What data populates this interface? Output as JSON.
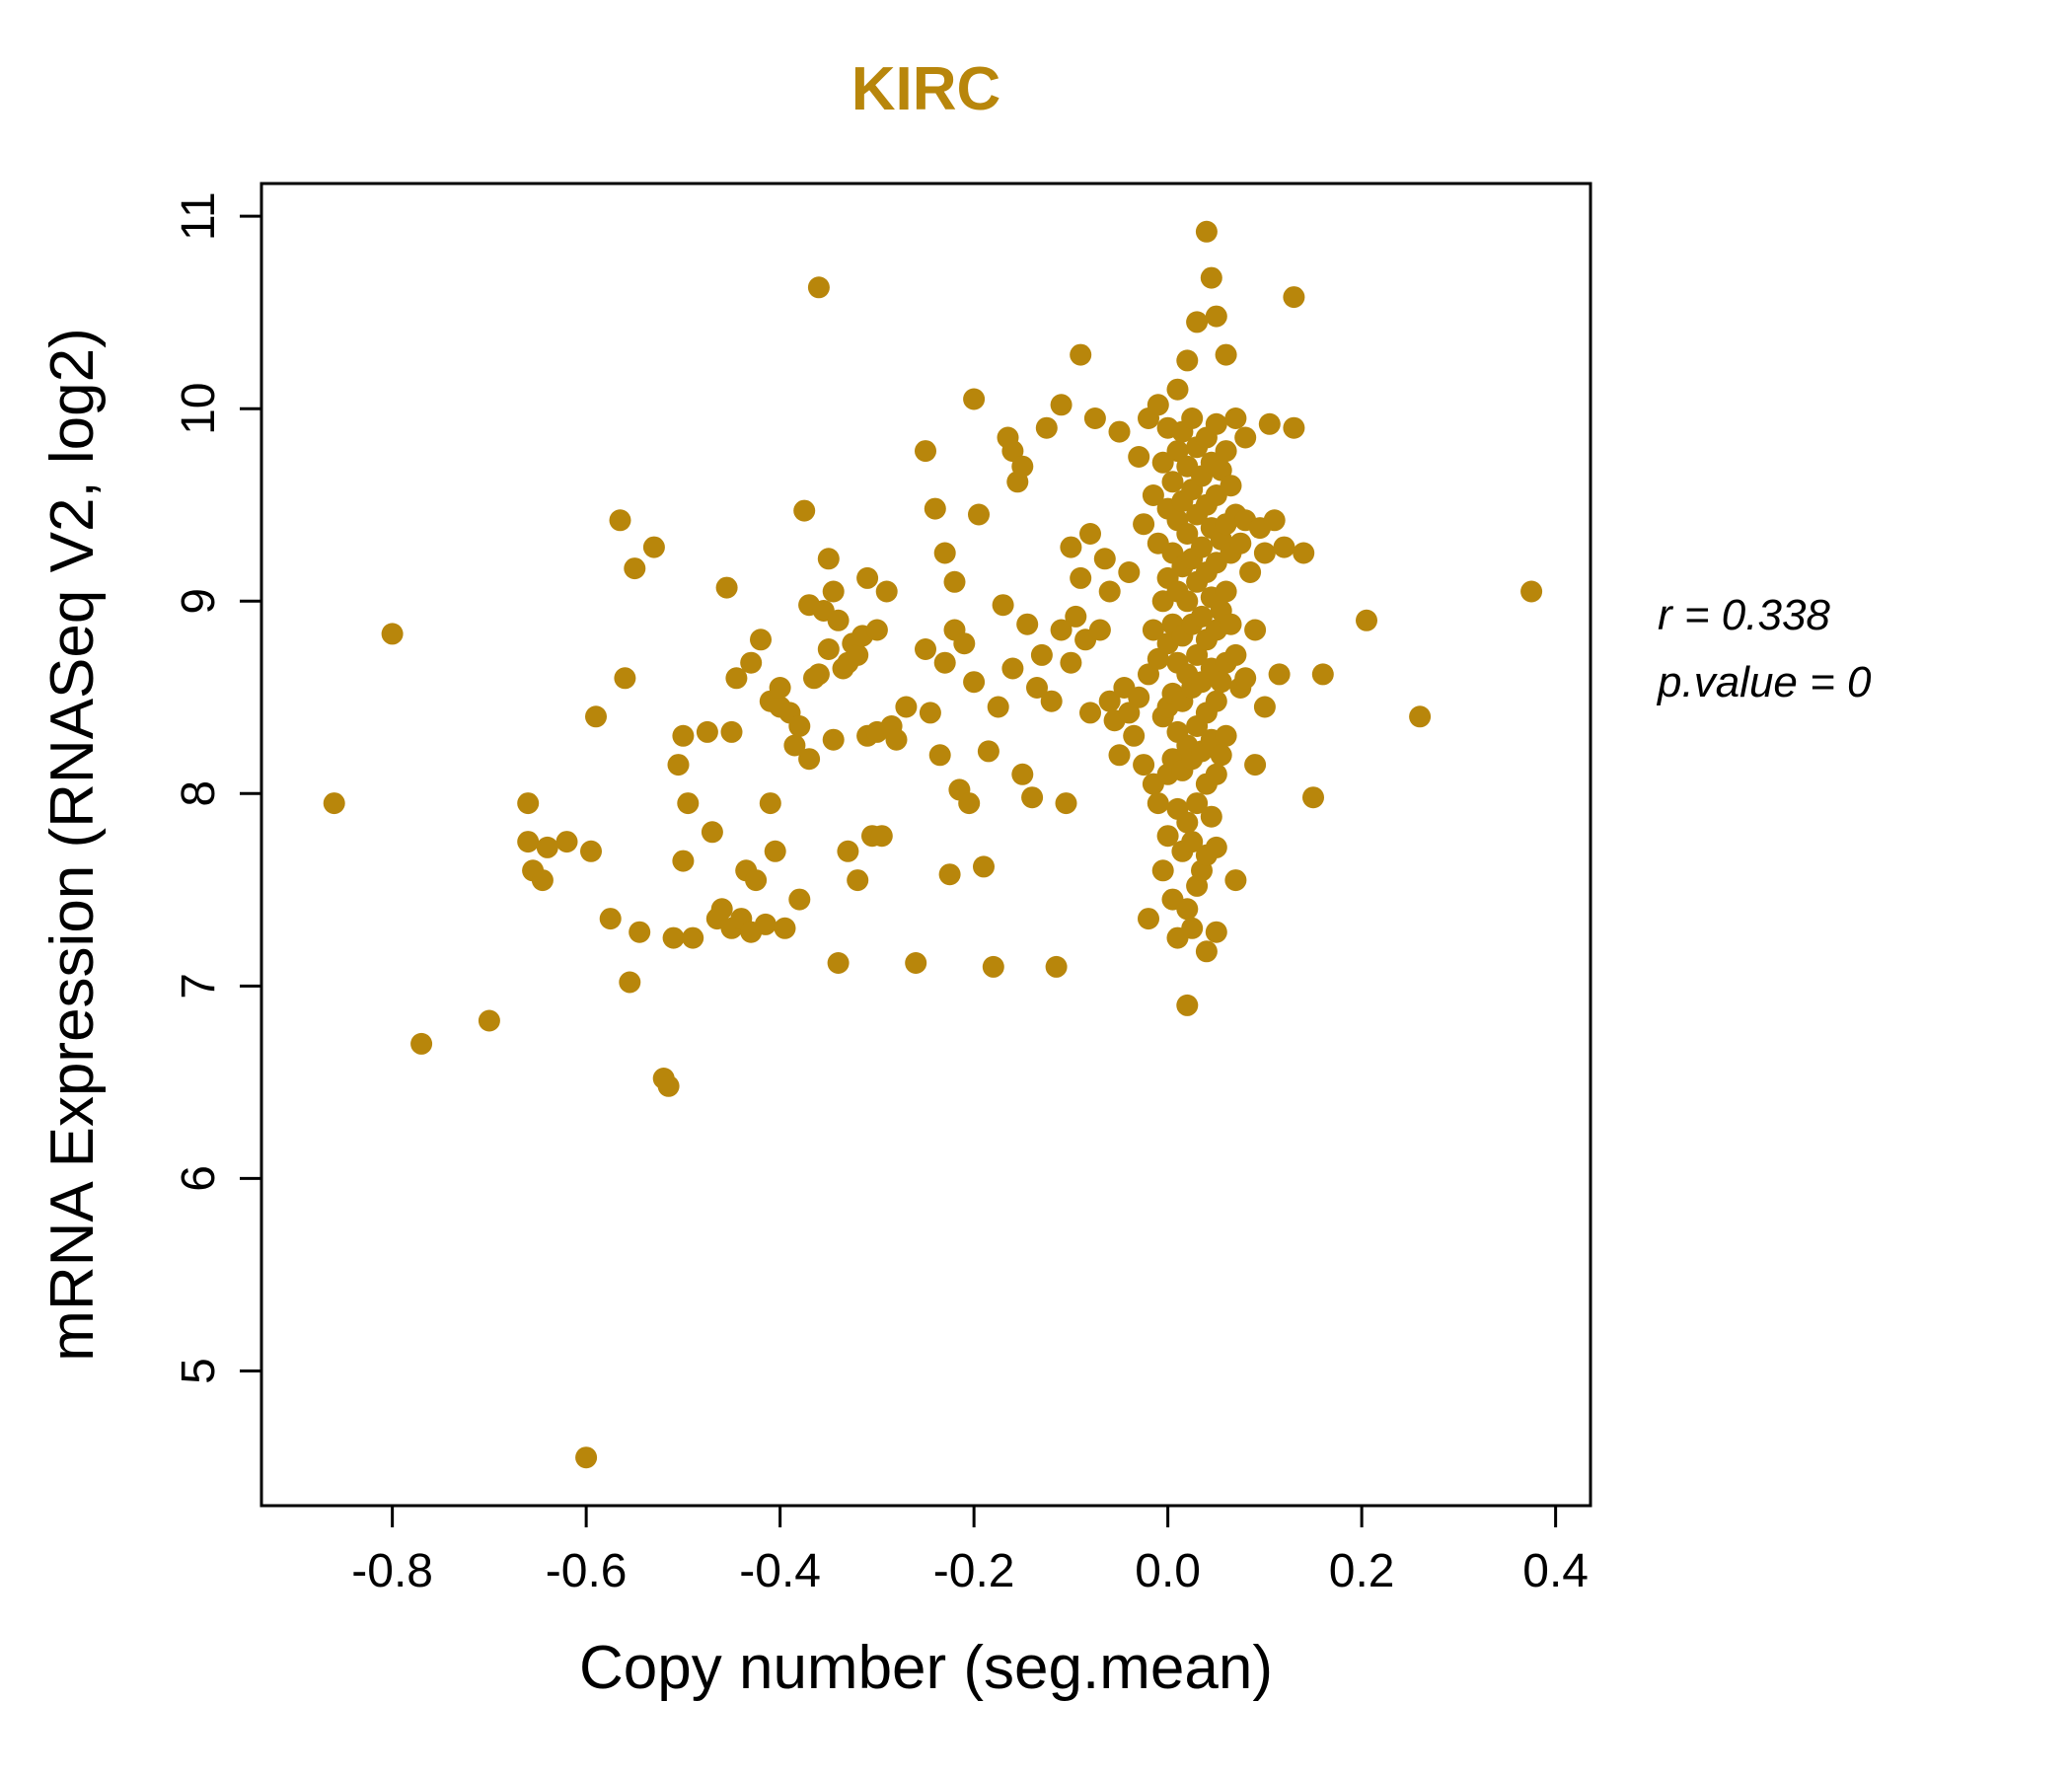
{
  "header": {
    "title": "KIRC"
  },
  "annotation": {
    "line1": "r = 0.338",
    "line2": "p.value = 0"
  },
  "colors": {
    "accent": "#B8860B",
    "axis": "#000000"
  },
  "chart_data": {
    "type": "scatter",
    "title": "KIRC",
    "xlabel": "Copy number (seg.mean)",
    "ylabel": "mRNA Expression (RNASeq V2, log2)",
    "xlim": [
      -0.935,
      0.436
    ],
    "ylim": [
      4.3,
      11.17
    ],
    "xticks": [
      -0.8,
      -0.6,
      -0.4,
      -0.2,
      0.0,
      0.2,
      0.4
    ],
    "xtick_labels": [
      "-0.8",
      "-0.6",
      "-0.4",
      "-0.2",
      "0.0",
      "0.2",
      "0.4"
    ],
    "yticks": [
      5,
      6,
      7,
      8,
      9,
      10,
      11
    ],
    "ytick_labels": [
      "5",
      "6",
      "7",
      "8",
      "9",
      "10",
      "11"
    ],
    "legend": null,
    "grid": false,
    "point_color": "#B8860B",
    "point_radius": 11,
    "r": 0.338,
    "p_value": 0,
    "points": [
      [
        -0.86,
        7.95
      ],
      [
        -0.8,
        8.83
      ],
      [
        -0.77,
        6.7
      ],
      [
        -0.7,
        6.82
      ],
      [
        -0.66,
        7.95
      ],
      [
        -0.66,
        7.75
      ],
      [
        -0.655,
        7.6
      ],
      [
        -0.645,
        7.55
      ],
      [
        -0.64,
        7.72
      ],
      [
        -0.62,
        7.75
      ],
      [
        -0.6,
        4.55
      ],
      [
        -0.595,
        7.7
      ],
      [
        -0.59,
        8.4
      ],
      [
        -0.575,
        7.35
      ],
      [
        -0.565,
        9.42
      ],
      [
        -0.56,
        8.6
      ],
      [
        -0.555,
        7.02
      ],
      [
        -0.55,
        9.17
      ],
      [
        -0.545,
        7.28
      ],
      [
        -0.53,
        9.28
      ],
      [
        -0.52,
        6.52
      ],
      [
        -0.515,
        6.48
      ],
      [
        -0.51,
        7.25
      ],
      [
        -0.505,
        8.15
      ],
      [
        -0.5,
        8.3
      ],
      [
        -0.5,
        7.65
      ],
      [
        -0.495,
        7.95
      ],
      [
        -0.49,
        7.25
      ],
      [
        -0.475,
        8.32
      ],
      [
        -0.47,
        7.8
      ],
      [
        -0.465,
        7.35
      ],
      [
        -0.46,
        7.4
      ],
      [
        -0.455,
        9.07
      ],
      [
        -0.45,
        7.3
      ],
      [
        -0.45,
        8.32
      ],
      [
        -0.445,
        8.6
      ],
      [
        -0.44,
        7.35
      ],
      [
        -0.435,
        7.6
      ],
      [
        -0.43,
        7.28
      ],
      [
        -0.43,
        8.68
      ],
      [
        -0.425,
        7.55
      ],
      [
        -0.42,
        8.8
      ],
      [
        -0.415,
        7.32
      ],
      [
        -0.41,
        7.95
      ],
      [
        -0.41,
        8.48
      ],
      [
        -0.405,
        7.7
      ],
      [
        -0.4,
        8.45
      ],
      [
        -0.4,
        8.55
      ],
      [
        -0.395,
        7.3
      ],
      [
        -0.39,
        8.42
      ],
      [
        -0.385,
        8.25
      ],
      [
        -0.38,
        7.45
      ],
      [
        -0.38,
        8.35
      ],
      [
        -0.375,
        9.47
      ],
      [
        -0.37,
        8.18
      ],
      [
        -0.37,
        8.98
      ],
      [
        -0.365,
        8.6
      ],
      [
        -0.36,
        10.63
      ],
      [
        -0.36,
        8.62
      ],
      [
        -0.355,
        8.95
      ],
      [
        -0.35,
        9.22
      ],
      [
        -0.35,
        8.75
      ],
      [
        -0.345,
        9.05
      ],
      [
        -0.345,
        8.28
      ],
      [
        -0.34,
        8.9
      ],
      [
        -0.34,
        7.12
      ],
      [
        -0.335,
        8.65
      ],
      [
        -0.33,
        8.68
      ],
      [
        -0.33,
        7.7
      ],
      [
        -0.325,
        8.78
      ],
      [
        -0.32,
        8.72
      ],
      [
        -0.32,
        7.55
      ],
      [
        -0.315,
        8.82
      ],
      [
        -0.31,
        9.12
      ],
      [
        -0.31,
        8.3
      ],
      [
        -0.305,
        7.78
      ],
      [
        -0.3,
        8.85
      ],
      [
        -0.3,
        8.32
      ],
      [
        -0.295,
        7.78
      ],
      [
        -0.29,
        9.05
      ],
      [
        -0.285,
        8.35
      ],
      [
        -0.28,
        8.28
      ],
      [
        -0.27,
        8.45
      ],
      [
        -0.26,
        7.12
      ],
      [
        -0.25,
        8.75
      ],
      [
        -0.25,
        9.78
      ],
      [
        -0.245,
        8.42
      ],
      [
        -0.24,
        9.48
      ],
      [
        -0.235,
        8.2
      ],
      [
        -0.23,
        9.25
      ],
      [
        -0.23,
        8.68
      ],
      [
        -0.225,
        7.58
      ],
      [
        -0.22,
        8.85
      ],
      [
        -0.22,
        9.1
      ],
      [
        -0.215,
        8.02
      ],
      [
        -0.21,
        8.78
      ],
      [
        -0.205,
        7.95
      ],
      [
        -0.2,
        10.05
      ],
      [
        -0.2,
        8.58
      ],
      [
        -0.195,
        9.45
      ],
      [
        -0.19,
        7.62
      ],
      [
        -0.185,
        8.22
      ],
      [
        -0.18,
        7.1
      ],
      [
        -0.175,
        8.45
      ],
      [
        -0.17,
        8.98
      ],
      [
        -0.165,
        9.85
      ],
      [
        -0.16,
        9.78
      ],
      [
        -0.16,
        8.65
      ],
      [
        -0.155,
        9.62
      ],
      [
        -0.15,
        9.7
      ],
      [
        -0.15,
        8.1
      ],
      [
        -0.145,
        8.88
      ],
      [
        -0.14,
        7.98
      ],
      [
        -0.135,
        8.55
      ],
      [
        -0.13,
        8.72
      ],
      [
        -0.125,
        9.9
      ],
      [
        -0.12,
        8.48
      ],
      [
        -0.115,
        7.1
      ],
      [
        -0.11,
        10.02
      ],
      [
        -0.11,
        8.85
      ],
      [
        -0.105,
        7.95
      ],
      [
        -0.1,
        9.28
      ],
      [
        -0.1,
        8.68
      ],
      [
        -0.095,
        8.92
      ],
      [
        -0.09,
        10.28
      ],
      [
        -0.09,
        9.12
      ],
      [
        -0.085,
        8.8
      ],
      [
        -0.08,
        9.35
      ],
      [
        -0.08,
        8.42
      ],
      [
        -0.075,
        9.95
      ],
      [
        -0.07,
        8.85
      ],
      [
        -0.065,
        9.22
      ],
      [
        -0.06,
        8.48
      ],
      [
        -0.06,
        9.05
      ],
      [
        -0.055,
        8.38
      ],
      [
        -0.05,
        9.88
      ],
      [
        -0.05,
        8.2
      ],
      [
        -0.045,
        8.55
      ],
      [
        -0.04,
        9.15
      ],
      [
        -0.04,
        8.42
      ],
      [
        -0.035,
        8.3
      ],
      [
        -0.03,
        9.75
      ],
      [
        -0.03,
        8.5
      ],
      [
        -0.025,
        9.4
      ],
      [
        -0.025,
        8.15
      ],
      [
        -0.02,
        9.95
      ],
      [
        -0.02,
        8.62
      ],
      [
        -0.02,
        7.35
      ],
      [
        -0.015,
        9.55
      ],
      [
        -0.015,
        8.85
      ],
      [
        -0.015,
        8.05
      ],
      [
        -0.01,
        10.02
      ],
      [
        -0.01,
        9.3
      ],
      [
        -0.01,
        8.7
      ],
      [
        -0.01,
        7.95
      ],
      [
        -0.005,
        9.72
      ],
      [
        -0.005,
        9.0
      ],
      [
        -0.005,
        8.4
      ],
      [
        -0.005,
        7.6
      ],
      [
        0.0,
        9.9
      ],
      [
        0.0,
        9.48
      ],
      [
        0.0,
        9.12
      ],
      [
        0.0,
        8.78
      ],
      [
        0.0,
        8.45
      ],
      [
        0.0,
        8.1
      ],
      [
        0.0,
        7.78
      ],
      [
        0.005,
        9.62
      ],
      [
        0.005,
        9.25
      ],
      [
        0.005,
        8.88
      ],
      [
        0.005,
        8.52
      ],
      [
        0.005,
        8.18
      ],
      [
        0.005,
        7.45
      ],
      [
        0.01,
        10.1
      ],
      [
        0.01,
        9.78
      ],
      [
        0.01,
        9.42
      ],
      [
        0.01,
        9.05
      ],
      [
        0.01,
        8.68
      ],
      [
        0.01,
        8.32
      ],
      [
        0.01,
        7.92
      ],
      [
        0.01,
        7.25
      ],
      [
        0.015,
        9.88
      ],
      [
        0.015,
        9.52
      ],
      [
        0.015,
        9.18
      ],
      [
        0.015,
        8.82
      ],
      [
        0.015,
        8.48
      ],
      [
        0.015,
        8.12
      ],
      [
        0.015,
        7.7
      ],
      [
        0.02,
        10.25
      ],
      [
        0.02,
        9.7
      ],
      [
        0.02,
        9.35
      ],
      [
        0.02,
        9.0
      ],
      [
        0.02,
        8.62
      ],
      [
        0.02,
        8.25
      ],
      [
        0.02,
        7.85
      ],
      [
        0.02,
        7.4
      ],
      [
        0.02,
        6.9
      ],
      [
        0.025,
        9.95
      ],
      [
        0.025,
        9.58
      ],
      [
        0.025,
        9.22
      ],
      [
        0.025,
        8.88
      ],
      [
        0.025,
        8.55
      ],
      [
        0.025,
        8.18
      ],
      [
        0.025,
        7.75
      ],
      [
        0.025,
        7.3
      ],
      [
        0.03,
        10.45
      ],
      [
        0.03,
        9.8
      ],
      [
        0.03,
        9.45
      ],
      [
        0.03,
        9.1
      ],
      [
        0.03,
        8.72
      ],
      [
        0.03,
        8.35
      ],
      [
        0.03,
        7.95
      ],
      [
        0.03,
        7.52
      ],
      [
        0.035,
        9.65
      ],
      [
        0.035,
        9.28
      ],
      [
        0.035,
        8.92
      ],
      [
        0.035,
        8.58
      ],
      [
        0.035,
        8.22
      ],
      [
        0.035,
        7.6
      ],
      [
        0.04,
        10.92
      ],
      [
        0.04,
        9.85
      ],
      [
        0.04,
        9.5
      ],
      [
        0.04,
        9.15
      ],
      [
        0.04,
        8.8
      ],
      [
        0.04,
        8.42
      ],
      [
        0.04,
        8.05
      ],
      [
        0.04,
        7.68
      ],
      [
        0.04,
        7.18
      ],
      [
        0.045,
        10.68
      ],
      [
        0.045,
        9.72
      ],
      [
        0.045,
        9.38
      ],
      [
        0.045,
        9.02
      ],
      [
        0.045,
        8.65
      ],
      [
        0.045,
        8.28
      ],
      [
        0.045,
        7.88
      ],
      [
        0.05,
        10.48
      ],
      [
        0.05,
        9.92
      ],
      [
        0.05,
        9.55
      ],
      [
        0.05,
        9.2
      ],
      [
        0.05,
        8.85
      ],
      [
        0.05,
        8.48
      ],
      [
        0.05,
        8.1
      ],
      [
        0.05,
        7.72
      ],
      [
        0.05,
        7.28
      ],
      [
        0.055,
        9.68
      ],
      [
        0.055,
        9.32
      ],
      [
        0.055,
        8.95
      ],
      [
        0.055,
        8.58
      ],
      [
        0.055,
        8.2
      ],
      [
        0.06,
        10.28
      ],
      [
        0.06,
        9.78
      ],
      [
        0.06,
        9.4
      ],
      [
        0.06,
        9.05
      ],
      [
        0.06,
        8.68
      ],
      [
        0.06,
        8.3
      ],
      [
        0.065,
        9.6
      ],
      [
        0.065,
        9.25
      ],
      [
        0.065,
        8.88
      ],
      [
        0.07,
        9.95
      ],
      [
        0.07,
        9.45
      ],
      [
        0.07,
        8.72
      ],
      [
        0.07,
        7.55
      ],
      [
        0.075,
        9.3
      ],
      [
        0.075,
        8.55
      ],
      [
        0.08,
        9.85
      ],
      [
        0.08,
        9.42
      ],
      [
        0.08,
        8.6
      ],
      [
        0.085,
        9.15
      ],
      [
        0.09,
        8.85
      ],
      [
        0.09,
        8.15
      ],
      [
        0.095,
        9.38
      ],
      [
        0.1,
        9.25
      ],
      [
        0.1,
        8.45
      ],
      [
        0.105,
        9.92
      ],
      [
        0.11,
        9.42
      ],
      [
        0.115,
        8.62
      ],
      [
        0.12,
        9.28
      ],
      [
        0.13,
        10.58
      ],
      [
        0.13,
        9.9
      ],
      [
        0.14,
        9.25
      ],
      [
        0.15,
        7.98
      ],
      [
        0.16,
        8.62
      ],
      [
        0.205,
        8.9
      ],
      [
        0.26,
        8.4
      ],
      [
        0.375,
        9.05
      ]
    ]
  }
}
